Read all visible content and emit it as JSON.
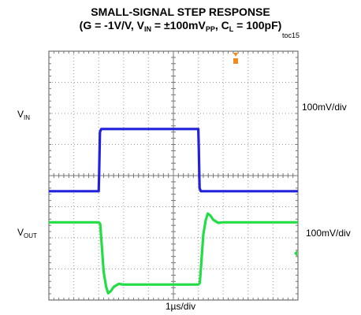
{
  "chart_data": {
    "type": "line",
    "title": "SMALL-SIGNAL STEP RESPONSE",
    "subtitle": {
      "prefix": "(G = -1V/V, V",
      "vin_sub": "IN",
      "mid": " = ±100mV",
      "pp_sub": "PP",
      "c_part": ", C",
      "cl_sub": "L",
      "suffix": " = 100pF)"
    },
    "figure_tag": "toc15",
    "timebase_label": "1µs/div",
    "grid": true,
    "x_divisions": 10,
    "y_divisions": 8,
    "x_unit": "µs",
    "series": [
      {
        "name_main": "V",
        "name_sub": "IN",
        "scale_label": "100mV/div",
        "color": "#2222dd",
        "baseline_div": 4.5,
        "points": [
          [
            0,
            -1.0
          ],
          [
            2.0,
            -1.0
          ],
          [
            2.02,
            -0.4
          ],
          [
            2.05,
            0.9
          ],
          [
            2.1,
            1.0
          ],
          [
            6.0,
            1.0
          ],
          [
            6.02,
            0.4
          ],
          [
            6.05,
            -0.9
          ],
          [
            6.1,
            -1.0
          ],
          [
            10,
            -1.0
          ]
        ]
      },
      {
        "name_main": "V",
        "name_sub": "OUT",
        "scale_label": "100mV/div",
        "color": "#22dd44",
        "baseline_div": 1.5,
        "points": [
          [
            0,
            1.0
          ],
          [
            2.0,
            1.0
          ],
          [
            2.06,
            0.95
          ],
          [
            2.12,
            0.3
          ],
          [
            2.2,
            -0.6
          ],
          [
            2.3,
            -1.08
          ],
          [
            2.38,
            -1.28
          ],
          [
            2.48,
            -1.22
          ],
          [
            2.6,
            -1.08
          ],
          [
            2.8,
            -0.98
          ],
          [
            3.0,
            -1.0
          ],
          [
            6.0,
            -1.0
          ],
          [
            6.06,
            -0.95
          ],
          [
            6.12,
            -0.3
          ],
          [
            6.2,
            0.6
          ],
          [
            6.3,
            1.08
          ],
          [
            6.38,
            1.28
          ],
          [
            6.48,
            1.22
          ],
          [
            6.6,
            1.08
          ],
          [
            6.8,
            0.98
          ],
          [
            7.0,
            1.0
          ],
          [
            10,
            1.0
          ]
        ]
      }
    ]
  }
}
